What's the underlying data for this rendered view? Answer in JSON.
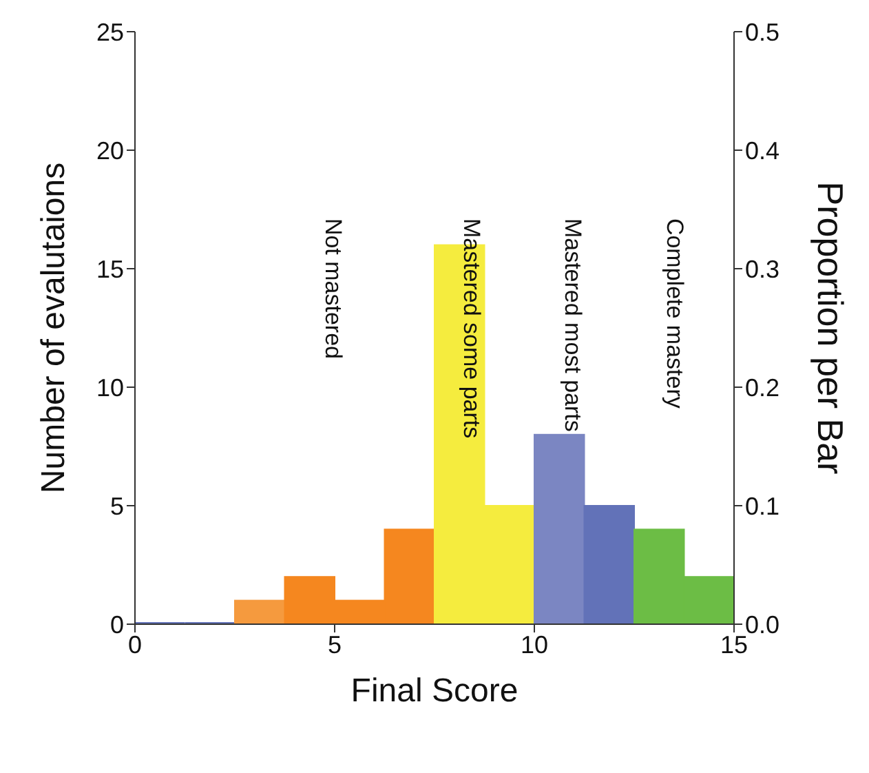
{
  "chart_data": {
    "type": "histogram",
    "bins": [
      0,
      1.25,
      2.5,
      3.75,
      5,
      6.25,
      7.5,
      8.75,
      10,
      11.25,
      12.5,
      13.75,
      15
    ],
    "values": [
      0,
      0,
      1,
      2,
      1,
      4,
      16,
      5,
      8,
      5,
      4,
      2
    ],
    "colors": [
      "#6272b8",
      "#6272b8",
      "#f59a3e",
      "#f5871f",
      "#f5871f",
      "#f5871f",
      "#f5ec3e",
      "#f5ec3e",
      "#7b86c2",
      "#6272b8",
      "#6cbd45",
      "#6cbd45"
    ],
    "xlabel": "Final Score",
    "ylabel": "Number of evalutaions",
    "y2label": "Proportion per Bar",
    "xlim": [
      0,
      15
    ],
    "xticks": [
      0,
      5,
      10,
      15
    ],
    "ylim": [
      0,
      25
    ],
    "yticks": [
      0,
      5,
      10,
      15,
      20,
      25
    ],
    "y2lim": [
      0,
      0.5
    ],
    "y2ticks": [
      {
        "value": 0,
        "label": "0.0"
      },
      0.1,
      0.2,
      0.3,
      0.4,
      0.5
    ],
    "grid": false,
    "legend": false,
    "annotations": [
      "Not mastered",
      "Mastered some parts",
      "Mastered most parts",
      "Complete mastery"
    ]
  }
}
